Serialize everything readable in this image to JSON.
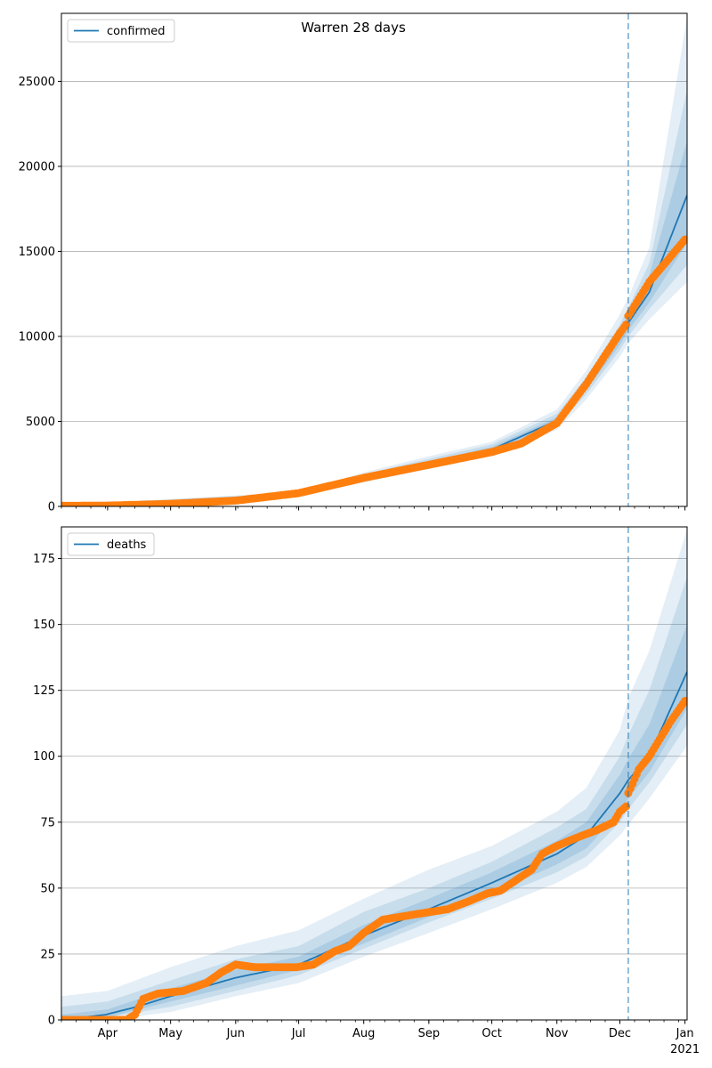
{
  "title": "Warren 28 days",
  "colors": {
    "model": "#1f77b4",
    "observed": "#ff7f0e",
    "band": "#1f77b4",
    "grid": "#b0b0b0",
    "vline": "#1f77b4"
  },
  "x_axis": {
    "start": "2020-03-10",
    "end": "2021-01-02",
    "month_labels": [
      "Apr",
      "May",
      "Jun",
      "Jul",
      "Aug",
      "Sep",
      "Oct",
      "Nov",
      "Dec",
      "Jan"
    ],
    "month_dates": [
      "2020-04-01",
      "2020-05-01",
      "2020-06-01",
      "2020-07-01",
      "2020-08-01",
      "2020-09-01",
      "2020-10-01",
      "2020-11-01",
      "2020-12-01",
      "2021-01-01"
    ],
    "year_label": "2021",
    "forecast_start": "2020-12-05"
  },
  "chart_data": [
    {
      "type": "line",
      "legend": "confirmed",
      "legend_position": "top-left",
      "grid": "y",
      "ylim": [
        0,
        29000
      ],
      "yticks": [
        0,
        5000,
        10000,
        15000,
        20000,
        25000
      ],
      "ytick_labels": [
        "0",
        "5000",
        "10000",
        "15000",
        "20000",
        "25000"
      ],
      "model": {
        "dates": [
          "2020-03-10",
          "2020-04-01",
          "2020-05-01",
          "2020-06-01",
          "2020-07-01",
          "2020-08-01",
          "2020-09-01",
          "2020-10-01",
          "2020-11-01",
          "2020-11-15",
          "2020-12-01",
          "2020-12-05",
          "2020-12-15",
          "2021-01-02"
        ],
        "values": [
          40,
          80,
          200,
          380,
          750,
          1700,
          2550,
          3350,
          5050,
          7100,
          9900,
          10800,
          12600,
          18300
        ]
      },
      "bands": [
        {
          "dates": [
            "2020-03-10",
            "2020-07-01",
            "2020-08-01",
            "2020-09-01",
            "2020-10-01",
            "2020-11-01",
            "2020-11-15",
            "2020-12-01",
            "2020-12-05",
            "2020-12-15",
            "2021-01-02"
          ],
          "lower": [
            0,
            650,
            1400,
            2200,
            2950,
            4500,
            6300,
            8800,
            9600,
            11000,
            13200
          ],
          "upper": [
            80,
            850,
            2000,
            2950,
            3800,
            5700,
            8000,
            11300,
            12300,
            15200,
            28800
          ]
        },
        {
          "dates": [
            "2020-03-10",
            "2020-07-01",
            "2020-08-01",
            "2020-09-01",
            "2020-10-01",
            "2020-11-01",
            "2020-11-15",
            "2020-12-01",
            "2020-12-05",
            "2020-12-15",
            "2021-01-02"
          ],
          "lower": [
            20,
            700,
            1500,
            2350,
            3100,
            4700,
            6600,
            9200,
            10000,
            11600,
            14200
          ],
          "upper": [
            60,
            800,
            1900,
            2800,
            3650,
            5450,
            7600,
            10700,
            11700,
            14300,
            24500
          ]
        },
        {
          "dates": [
            "2020-03-10",
            "2020-07-01",
            "2020-08-01",
            "2020-09-01",
            "2020-10-01",
            "2020-11-01",
            "2020-11-15",
            "2020-12-01",
            "2020-12-05",
            "2020-12-15",
            "2021-01-02"
          ],
          "lower": [
            30,
            720,
            1600,
            2450,
            3200,
            4850,
            6850,
            9500,
            10350,
            12000,
            15500
          ],
          "upper": [
            50,
            780,
            1800,
            2650,
            3500,
            5250,
            7350,
            10300,
            11250,
            13600,
            21500
          ]
        }
      ],
      "observed": {
        "dates": [
          "2020-03-10",
          "2020-04-01",
          "2020-05-01",
          "2020-06-01",
          "2020-07-01",
          "2020-08-01",
          "2020-09-01",
          "2020-10-01",
          "2020-10-15",
          "2020-11-01",
          "2020-11-15",
          "2020-12-01",
          "2020-12-04",
          "2020-12-05",
          "2020-12-15",
          "2021-01-01"
        ],
        "values": [
          40,
          50,
          150,
          340,
          780,
          1680,
          2450,
          3200,
          3700,
          4900,
          7200,
          10200,
          10700,
          11200,
          13200,
          15700
        ]
      }
    },
    {
      "type": "line",
      "legend": "deaths",
      "legend_position": "top-left",
      "grid": "y",
      "ylim": [
        0,
        187
      ],
      "yticks": [
        0,
        25,
        50,
        75,
        100,
        125,
        150,
        175
      ],
      "ytick_labels": [
        "0",
        "25",
        "50",
        "75",
        "100",
        "125",
        "150",
        "175"
      ],
      "model": {
        "dates": [
          "2020-03-10",
          "2020-03-31",
          "2020-04-15",
          "2020-05-01",
          "2020-06-01",
          "2020-07-01",
          "2020-08-01",
          "2020-09-01",
          "2020-10-01",
          "2020-11-01",
          "2020-11-15",
          "2020-12-01",
          "2020-12-05",
          "2020-12-15",
          "2021-01-02"
        ],
        "values": [
          0,
          2,
          5,
          9,
          16,
          21,
          32,
          42,
          52,
          63,
          70,
          86,
          91,
          100,
          132
        ]
      },
      "bands": [
        {
          "dates": [
            "2020-03-10",
            "2020-04-01",
            "2020-05-01",
            "2020-06-01",
            "2020-07-01",
            "2020-08-01",
            "2020-09-01",
            "2020-10-01",
            "2020-11-01",
            "2020-11-15",
            "2020-12-01",
            "2020-12-05",
            "2020-12-15",
            "2021-01-02"
          ],
          "lower": [
            0,
            0,
            3,
            9,
            14,
            24,
            33,
            42,
            52,
            58,
            70,
            74,
            84,
            104
          ],
          "upper": [
            9,
            11,
            20,
            28,
            34,
            46,
            57,
            66,
            79,
            88,
            110,
            122,
            140,
            186
          ]
        },
        {
          "dates": [
            "2020-03-10",
            "2020-04-01",
            "2020-05-01",
            "2020-06-01",
            "2020-07-01",
            "2020-08-01",
            "2020-09-01",
            "2020-10-01",
            "2020-11-01",
            "2020-11-15",
            "2020-12-01",
            "2020-12-05",
            "2020-12-15",
            "2021-01-02"
          ],
          "lower": [
            0,
            1,
            5,
            11,
            17,
            27,
            37,
            46,
            56,
            62,
            75,
            80,
            90,
            112
          ],
          "upper": [
            5,
            7,
            15,
            23,
            28,
            41,
            50,
            60,
            73,
            80,
            100,
            108,
            125,
            168
          ]
        },
        {
          "dates": [
            "2020-03-10",
            "2020-04-01",
            "2020-05-01",
            "2020-06-01",
            "2020-07-01",
            "2020-08-01",
            "2020-09-01",
            "2020-10-01",
            "2020-11-01",
            "2020-11-15",
            "2020-12-01",
            "2020-12-05",
            "2020-12-15",
            "2021-01-02"
          ],
          "lower": [
            0,
            1,
            7,
            13,
            19,
            29,
            39,
            48,
            59,
            65,
            79,
            84,
            94,
            118
          ],
          "upper": [
            2,
            4,
            12,
            19,
            24,
            36,
            46,
            56,
            68,
            75,
            93,
            99,
            112,
            150
          ]
        }
      ],
      "observed": {
        "dates": [
          "2020-03-10",
          "2020-04-10",
          "2020-04-14",
          "2020-04-18",
          "2020-04-25",
          "2020-05-07",
          "2020-05-18",
          "2020-05-25",
          "2020-06-01",
          "2020-06-10",
          "2020-06-30",
          "2020-07-08",
          "2020-07-18",
          "2020-07-25",
          "2020-08-01",
          "2020-08-10",
          "2020-08-25",
          "2020-09-10",
          "2020-09-20",
          "2020-09-29",
          "2020-10-05",
          "2020-10-20",
          "2020-10-25",
          "2020-11-01",
          "2020-11-10",
          "2020-11-20",
          "2020-11-28",
          "2020-12-01",
          "2020-12-04",
          "2020-12-05",
          "2020-12-10",
          "2020-12-15",
          "2020-12-25",
          "2021-01-01"
        ],
        "values": [
          0,
          0,
          2,
          8,
          10,
          11,
          14,
          18,
          21,
          20,
          20,
          21,
          26,
          28,
          33,
          38,
          40,
          42,
          45,
          48,
          49,
          57,
          63,
          66,
          69,
          72,
          75,
          79,
          81,
          86,
          95,
          100,
          113,
          121
        ]
      }
    }
  ]
}
